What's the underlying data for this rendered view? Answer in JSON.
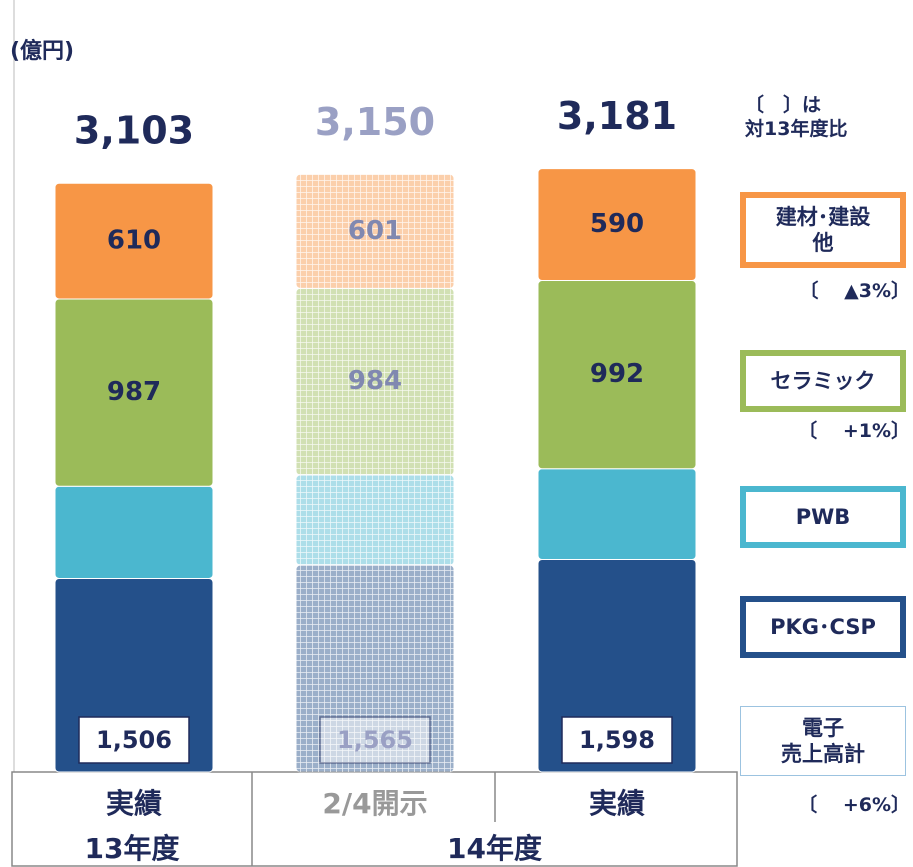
{
  "chart_data": {
    "type": "bar",
    "stacked": true,
    "unit_label": "(億円)",
    "note": "〔　〕は\n対13年度比",
    "categories": [
      "実績",
      "2/4開示",
      "実績"
    ],
    "faded": [
      false,
      true,
      false
    ],
    "groups": [
      {
        "label": "13年度",
        "size": 1
      },
      {
        "label": "14年度",
        "size": 2
      }
    ],
    "ylim": [
      0,
      4000
    ],
    "series": [
      {
        "name": "PKG･CSP",
        "color": "#24508a",
        "show_labels": false,
        "values": [
          1020,
          1090,
          1120
        ]
      },
      {
        "name": "PWB",
        "color": "#4bb7cf",
        "show_labels": false,
        "values": [
          486,
          475,
          478
        ]
      },
      {
        "name": "セラミック",
        "color": "#9bbb59",
        "show_labels": true,
        "values": [
          987,
          984,
          992
        ],
        "change": "〔　 +1%〕"
      },
      {
        "name": "建材･建設\n他",
        "color": "#f79646",
        "show_labels": true,
        "values": [
          610,
          601,
          590
        ],
        "change": "〔　 ▲3%〕"
      }
    ],
    "electronics": {
      "name": "電子\n売上高計",
      "values": [
        1506,
        1565,
        1598
      ],
      "value_labels": [
        "1,506",
        "1,565",
        "1,598"
      ],
      "change": "〔　 +6%〕"
    },
    "totals": {
      "values": [
        3103,
        3150,
        3181
      ],
      "value_labels": [
        "3,103",
        "3,150",
        "3,181"
      ]
    }
  }
}
